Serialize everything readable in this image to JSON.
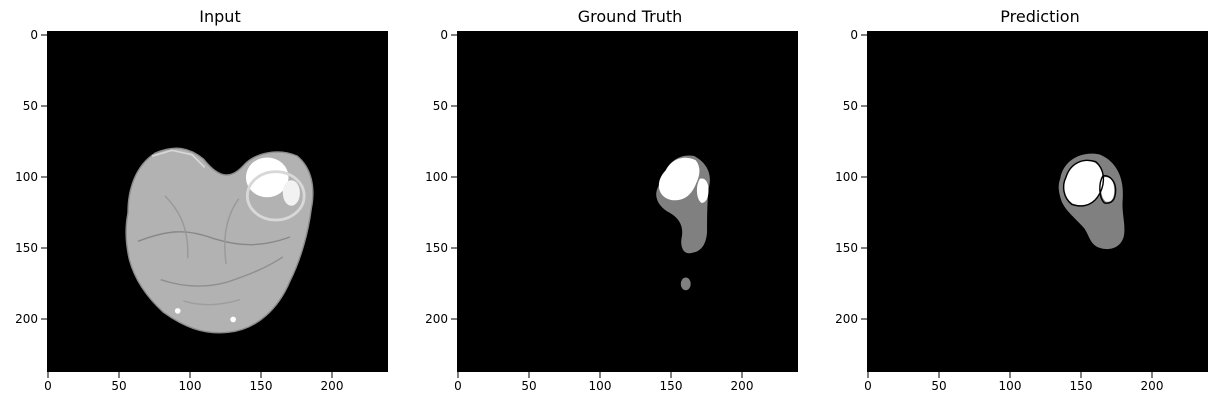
{
  "figure": {
    "panels": [
      {
        "id": "input",
        "title": "Input",
        "x_ticks": [
          "0",
          "50",
          "100",
          "150",
          "200"
        ],
        "y_ticks": [
          "0",
          "50",
          "100",
          "150",
          "200"
        ]
      },
      {
        "id": "ground-truth",
        "title": "Ground Truth",
        "x_ticks": [
          "0",
          "50",
          "100",
          "150",
          "200"
        ],
        "y_ticks": [
          "0",
          "50",
          "100",
          "150",
          "200"
        ]
      },
      {
        "id": "prediction",
        "title": "Prediction",
        "x_ticks": [
          "0",
          "50",
          "100",
          "150",
          "200"
        ],
        "y_ticks": [
          "0",
          "50",
          "100",
          "150",
          "200"
        ]
      }
    ]
  },
  "colors": {
    "background": "#ffffff",
    "image_background": "#000000",
    "tissue_light": "#b8b8b8",
    "tissue_dark": "#8f8f8f",
    "lesion_gray": "#808080",
    "lesion_white": "#ffffff"
  }
}
